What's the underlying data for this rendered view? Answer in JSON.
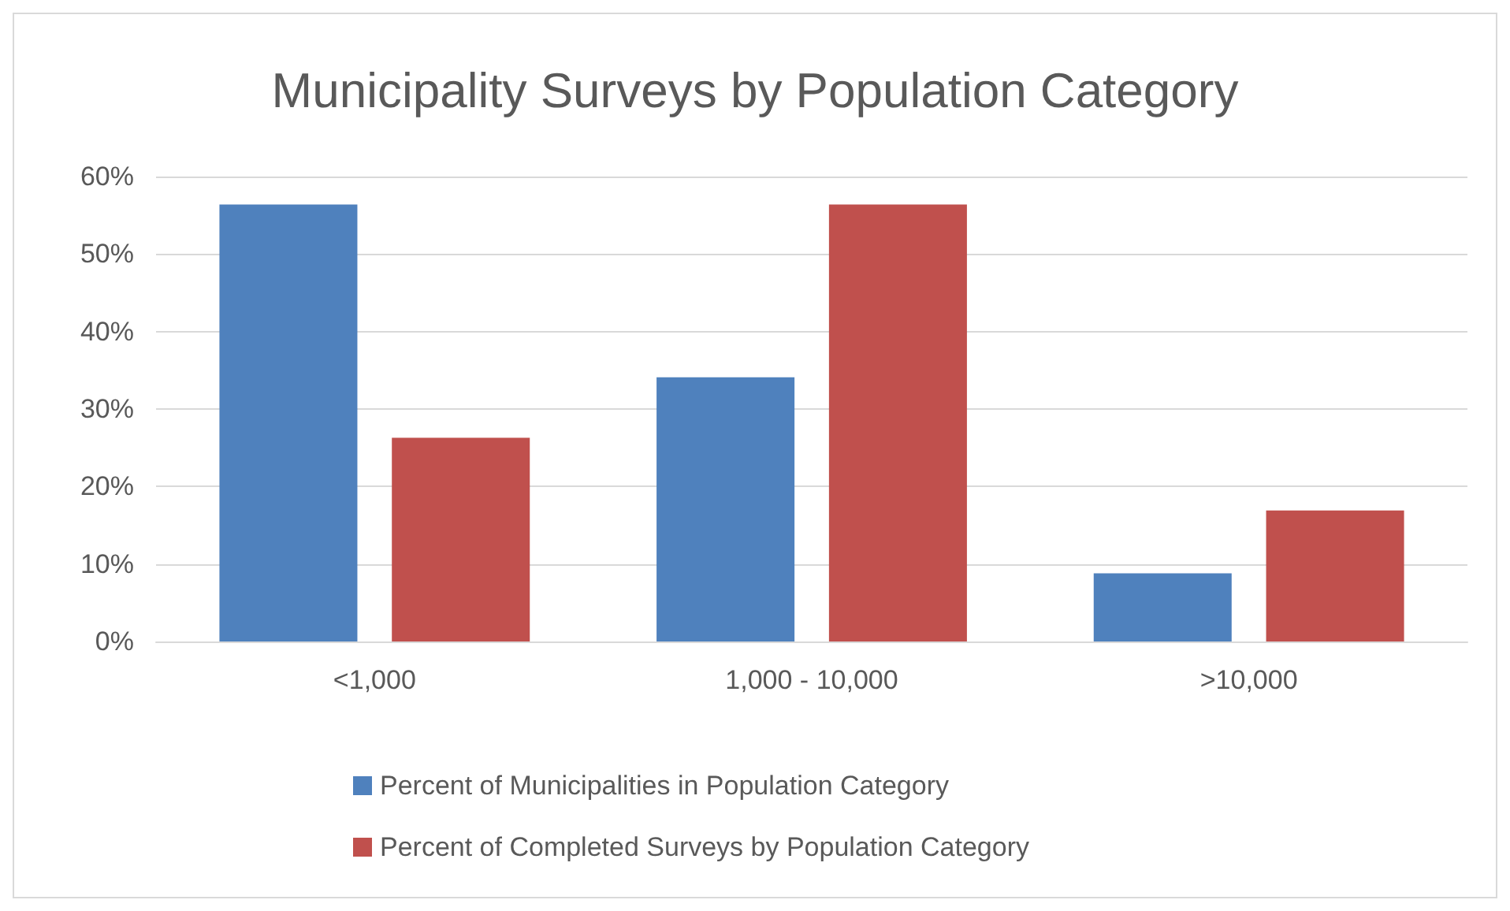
{
  "chart_data": {
    "type": "bar",
    "title": "Municipality Surveys by Population Category",
    "categories": [
      "<1,000",
      "1,000 - 10,000",
      ">10,000"
    ],
    "series": [
      {
        "name": "Percent of Municipalities in Population Category",
        "color": "#4f81bd",
        "values": [
          56.4,
          34.1,
          8.8
        ]
      },
      {
        "name": "Percent of Completed Surveys by Population Category",
        "color": "#c0504d",
        "values": [
          26.3,
          56.4,
          16.9
        ]
      }
    ],
    "ylim": [
      0,
      60
    ],
    "yticks": [
      {
        "value": 0,
        "label": "0%"
      },
      {
        "value": 10,
        "label": "10%"
      },
      {
        "value": 20,
        "label": "20%"
      },
      {
        "value": 30,
        "label": "30%"
      },
      {
        "value": 40,
        "label": "40%"
      },
      {
        "value": 50,
        "label": "50%"
      },
      {
        "value": 60,
        "label": "60%"
      }
    ],
    "grid": "y",
    "legend": "bottom"
  }
}
